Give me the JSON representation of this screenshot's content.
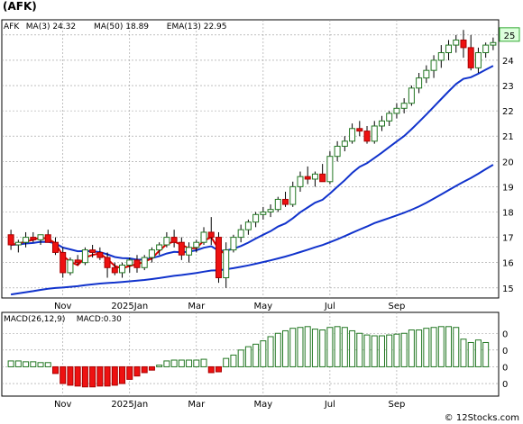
{
  "header": {
    "title": "(AFK)"
  },
  "footer": {
    "credit": "© 12Stocks.com"
  },
  "chart_data": [
    {
      "type": "candlestick",
      "legend": [
        {
          "name": "AFK",
          "value": "",
          "color": "#000000"
        },
        {
          "name": "MA(3)",
          "value": "24.32",
          "color": "#dd0000"
        },
        {
          "name": "MA(50)",
          "value": "18.89",
          "color": "#1133cc"
        },
        {
          "name": "EMA(13)",
          "value": "22.95",
          "color": "#1133cc"
        }
      ],
      "last_price_label": "25",
      "ylim": [
        14.6,
        25.6
      ],
      "y_ticks": [
        15,
        16,
        17,
        18,
        19,
        20,
        21,
        22,
        23,
        24,
        25
      ],
      "x_labels": [
        {
          "label": "Nov",
          "index": 7
        },
        {
          "label": "2025Jan",
          "index": 16
        },
        {
          "label": "Mar",
          "index": 25
        },
        {
          "label": "May",
          "index": 34
        },
        {
          "label": "Jul",
          "index": 43
        },
        {
          "label": "Sep",
          "index": 52
        }
      ],
      "ohlc": [
        [
          17.1,
          17.3,
          16.5,
          16.7
        ],
        [
          16.7,
          16.9,
          16.4,
          16.8
        ],
        [
          16.8,
          17.2,
          16.6,
          17.0
        ],
        [
          17.0,
          17.2,
          16.8,
          16.9
        ],
        [
          16.9,
          17.1,
          16.7,
          17.1
        ],
        [
          17.1,
          17.3,
          16.9,
          16.8
        ],
        [
          16.8,
          17.0,
          16.3,
          16.4
        ],
        [
          16.4,
          16.6,
          15.4,
          15.6
        ],
        [
          15.6,
          16.2,
          15.5,
          16.1
        ],
        [
          16.1,
          16.3,
          15.9,
          16.0
        ],
        [
          16.0,
          16.6,
          15.9,
          16.5
        ],
        [
          16.5,
          16.7,
          16.2,
          16.4
        ],
        [
          16.4,
          16.6,
          16.1,
          16.2
        ],
        [
          16.2,
          16.4,
          15.4,
          15.8
        ],
        [
          15.8,
          16.0,
          15.5,
          15.6
        ],
        [
          15.6,
          16.0,
          15.4,
          15.9
        ],
        [
          15.9,
          16.2,
          15.6,
          16.1
        ],
        [
          16.1,
          16.3,
          15.6,
          15.8
        ],
        [
          15.8,
          16.3,
          15.7,
          16.2
        ],
        [
          16.2,
          16.6,
          16.0,
          16.5
        ],
        [
          16.5,
          16.8,
          16.3,
          16.7
        ],
        [
          16.7,
          17.2,
          16.6,
          17.0
        ],
        [
          17.0,
          17.3,
          16.6,
          16.8
        ],
        [
          16.8,
          17.0,
          16.1,
          16.3
        ],
        [
          16.3,
          16.8,
          16.0,
          16.6
        ],
        [
          16.6,
          16.9,
          16.4,
          16.8
        ],
        [
          16.8,
          17.4,
          16.7,
          17.2
        ],
        [
          17.2,
          17.8,
          16.7,
          17.0
        ],
        [
          17.0,
          17.2,
          15.2,
          15.4
        ],
        [
          15.4,
          16.8,
          15.0,
          16.5
        ],
        [
          16.5,
          17.1,
          16.4,
          17.0
        ],
        [
          17.0,
          17.5,
          16.8,
          17.3
        ],
        [
          17.3,
          17.7,
          17.1,
          17.6
        ],
        [
          17.6,
          18.0,
          17.4,
          17.9
        ],
        [
          17.9,
          18.2,
          17.7,
          18.0
        ],
        [
          18.0,
          18.3,
          17.8,
          18.1
        ],
        [
          18.1,
          18.6,
          18.0,
          18.5
        ],
        [
          18.5,
          18.8,
          18.2,
          18.3
        ],
        [
          18.3,
          19.2,
          18.2,
          19.0
        ],
        [
          19.0,
          19.6,
          18.8,
          19.4
        ],
        [
          19.4,
          19.8,
          19.1,
          19.3
        ],
        [
          19.3,
          19.6,
          19.0,
          19.5
        ],
        [
          19.5,
          19.9,
          19.2,
          19.2
        ],
        [
          19.2,
          20.4,
          19.1,
          20.2
        ],
        [
          20.2,
          20.8,
          20.0,
          20.6
        ],
        [
          20.6,
          21.0,
          20.4,
          20.8
        ],
        [
          20.8,
          21.5,
          20.7,
          21.3
        ],
        [
          21.3,
          21.6,
          21.0,
          21.2
        ],
        [
          21.2,
          21.4,
          20.7,
          20.8
        ],
        [
          20.8,
          21.6,
          20.7,
          21.4
        ],
        [
          21.4,
          21.8,
          21.2,
          21.6
        ],
        [
          21.6,
          22.0,
          21.4,
          21.9
        ],
        [
          21.9,
          22.3,
          21.7,
          22.1
        ],
        [
          22.1,
          22.5,
          21.9,
          22.3
        ],
        [
          22.3,
          23.0,
          22.2,
          22.9
        ],
        [
          22.9,
          23.5,
          22.7,
          23.3
        ],
        [
          23.3,
          23.8,
          23.1,
          23.6
        ],
        [
          23.6,
          24.2,
          23.3,
          24.0
        ],
        [
          24.0,
          24.6,
          23.7,
          24.3
        ],
        [
          24.3,
          24.8,
          24.0,
          24.6
        ],
        [
          24.6,
          25.0,
          24.3,
          24.8
        ],
        [
          24.8,
          25.2,
          24.1,
          24.5
        ],
        [
          24.5,
          25.0,
          23.6,
          23.7
        ],
        [
          23.7,
          24.5,
          23.5,
          24.3
        ],
        [
          24.3,
          24.7,
          24.1,
          24.6
        ],
        [
          24.6,
          24.9,
          24.4,
          24.7
        ]
      ]
    },
    {
      "type": "bar",
      "legend": [
        {
          "name": "MACD(26,12,9)",
          "value": "",
          "color": "#000000"
        },
        {
          "name": "MACD:0.30",
          "value": "",
          "color": "#1133cc"
        }
      ],
      "ylim": [
        -0.35,
        0.65
      ],
      "y_ticks": [
        -0.2,
        0,
        0.2,
        0.4
      ],
      "y_tick_labels": [
        "0",
        "0",
        "0",
        "0"
      ],
      "x_labels": [
        {
          "label": "Nov",
          "index": 7
        },
        {
          "label": "2025Jan",
          "index": 16
        },
        {
          "label": "Mar",
          "index": 25
        },
        {
          "label": "May",
          "index": 34
        },
        {
          "label": "Jul",
          "index": 43
        },
        {
          "label": "Sep",
          "index": 52
        }
      ],
      "values": [
        0.07,
        0.07,
        0.06,
        0.06,
        0.05,
        0.05,
        -0.08,
        -0.2,
        -0.22,
        -0.23,
        -0.24,
        -0.24,
        -0.23,
        -0.23,
        -0.22,
        -0.2,
        -0.15,
        -0.11,
        -0.07,
        -0.04,
        0.02,
        0.07,
        0.08,
        0.08,
        0.08,
        0.08,
        0.09,
        -0.07,
        -0.06,
        0.1,
        0.14,
        0.2,
        0.24,
        0.27,
        0.31,
        0.36,
        0.4,
        0.43,
        0.46,
        0.47,
        0.48,
        0.45,
        0.44,
        0.47,
        0.48,
        0.47,
        0.43,
        0.4,
        0.38,
        0.37,
        0.37,
        0.38,
        0.39,
        0.4,
        0.44,
        0.44,
        0.46,
        0.47,
        0.48,
        0.48,
        0.47,
        0.33,
        0.29,
        0.32,
        0.29
      ]
    }
  ]
}
